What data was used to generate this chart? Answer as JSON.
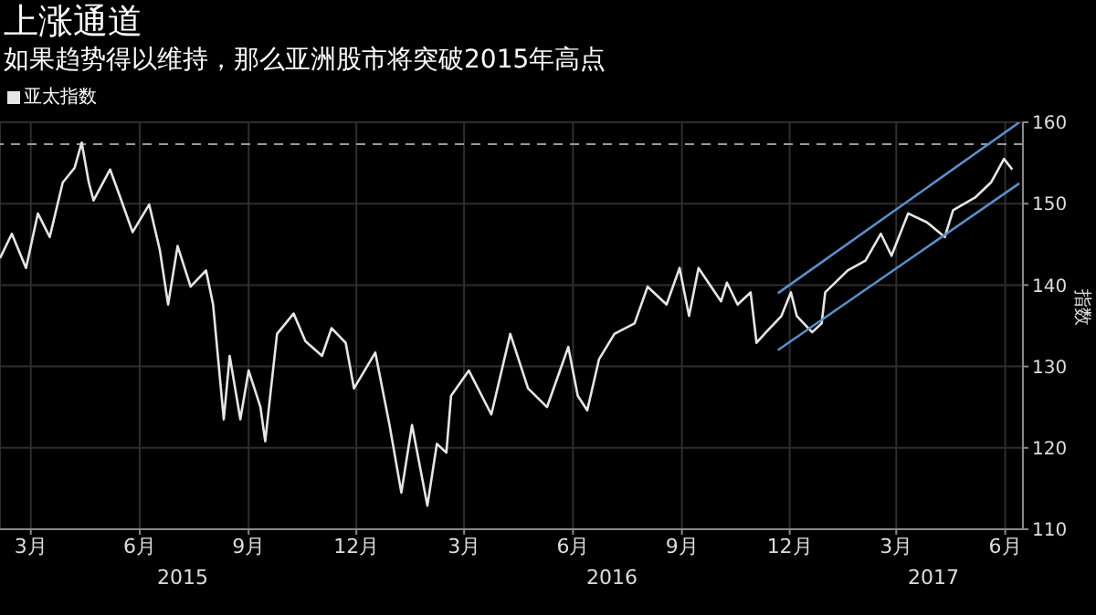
{
  "chart_data": {
    "type": "line",
    "title": "上涨通道",
    "subtitle": "如果趋势得以维持，那么亚洲股市将突破2015年高点",
    "ylabel": "指数",
    "x": [
      "2015-02-18",
      "2015-02-28",
      "2015-03-12",
      "2015-03-22",
      "2015-04-01",
      "2015-04-12",
      "2015-04-22",
      "2015-04-28",
      "2015-05-04",
      "2015-05-08",
      "2015-05-22",
      "2015-05-30",
      "2015-06-10",
      "2015-06-24",
      "2015-07-03",
      "2015-07-10",
      "2015-07-18",
      "2015-07-29",
      "2015-08-11",
      "2015-08-17",
      "2015-08-26",
      "2015-08-31",
      "2015-09-09",
      "2015-09-16",
      "2015-09-26",
      "2015-09-30",
      "2015-10-10",
      "2015-10-24",
      "2015-11-03",
      "2015-11-17",
      "2015-11-25",
      "2015-12-07",
      "2015-12-14",
      "2016-01-01",
      "2016-01-13",
      "2016-01-23",
      "2016-02-01",
      "2016-02-14",
      "2016-02-22",
      "2016-03-01",
      "2016-03-05",
      "2016-03-20",
      "2016-04-08",
      "2016-04-24",
      "2016-05-09",
      "2016-05-25",
      "2016-06-12",
      "2016-06-20",
      "2016-06-28",
      "2016-07-08",
      "2016-07-21",
      "2016-08-07",
      "2016-08-18",
      "2016-09-03",
      "2016-09-14",
      "2016-09-22",
      "2016-09-30",
      "2016-10-19",
      "2016-10-24",
      "2016-11-02",
      "2016-11-13",
      "2016-11-18",
      "2016-11-26",
      "2016-12-09",
      "2016-12-17",
      "2016-12-22",
      "2017-01-04",
      "2017-01-12",
      "2017-01-15",
      "2017-02-03",
      "2017-02-18",
      "2017-03-03",
      "2017-03-12",
      "2017-03-26",
      "2017-04-11",
      "2017-04-26",
      "2017-05-03",
      "2017-05-22",
      "2017-06-04",
      "2017-06-15",
      "2017-06-22"
    ],
    "series": [
      {
        "name": "亚太指数",
        "color": "#e6e6e6",
        "values": [
          143.3,
          146.3,
          142.1,
          148.8,
          145.9,
          152.6,
          154.4,
          157.5,
          152.6,
          150.4,
          154.2,
          151.0,
          146.5,
          149.9,
          144.3,
          137.6,
          144.8,
          139.8,
          141.8,
          137.6,
          123.5,
          131.3,
          123.5,
          129.5,
          125.0,
          120.8,
          134.0,
          136.5,
          133.1,
          131.3,
          134.7,
          132.9,
          127.3,
          131.7,
          122.8,
          114.5,
          122.8,
          112.9,
          120.5,
          119.4,
          126.4,
          129.5,
          124.1,
          134.0,
          127.3,
          125.0,
          132.4,
          126.4,
          124.6,
          130.9,
          134.0,
          135.3,
          139.8,
          137.6,
          142.1,
          136.2,
          142.1,
          138.0,
          140.3,
          137.6,
          139.1,
          132.9,
          134.2,
          136.2,
          139.1,
          136.2,
          134.2,
          135.3,
          139.1,
          141.8,
          143.0,
          146.3,
          143.6,
          148.8,
          147.7,
          145.9,
          149.2,
          150.8,
          152.6,
          155.5,
          154.2
        ]
      },
      {
        "type": "line",
        "color": "#5b8fc9",
        "x": [
          "2016-12-06",
          "2017-06-28"
        ],
        "values": [
          139,
          160
        ]
      },
      {
        "type": "line",
        "color": "#5b8fc9",
        "x": [
          "2016-12-06",
          "2017-06-28"
        ],
        "values": [
          132,
          152.5
        ]
      }
    ],
    "xlim": [
      "2015-02-18",
      "2017-07-01"
    ],
    "xticks": [
      {
        "value": "2015-03-16",
        "label": "3月"
      },
      {
        "value": "2015-06-16",
        "label": "6月"
      },
      {
        "value": "2015-09-16",
        "label": "9月"
      },
      {
        "value": "2015-12-16",
        "label": "12月"
      },
      {
        "value": "2016-03-16",
        "label": "3月"
      },
      {
        "value": "2016-06-16",
        "label": "6月"
      },
      {
        "value": "2016-09-16",
        "label": "9月"
      },
      {
        "value": "2016-12-16",
        "label": "12月"
      },
      {
        "value": "2017-03-16",
        "label": "3月"
      },
      {
        "value": "2017-06-16",
        "label": "6月"
      }
    ],
    "ylim": [
      110,
      160
    ],
    "yticks": [
      110,
      120,
      130,
      140,
      150,
      160
    ],
    "ref_lines": [
      {
        "axis": "y",
        "value": 157.3,
        "color": "#9a9a9a",
        "line_style": "dashed"
      }
    ],
    "annotations": [
      "2015",
      "2016",
      "2017"
    ],
    "grid": true,
    "legend": "top left",
    "marker": "none",
    "line_style": "solid"
  }
}
